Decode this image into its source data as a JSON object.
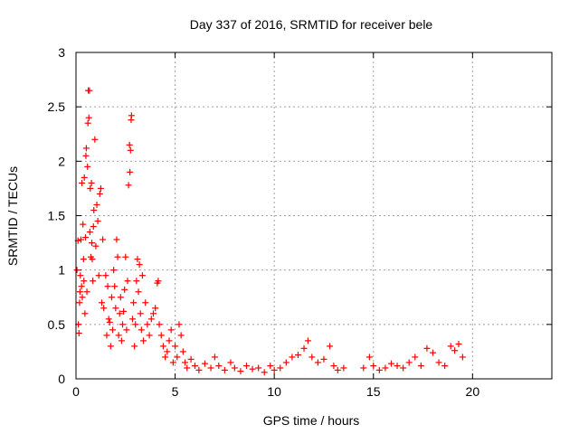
{
  "chart_data": {
    "type": "scatter",
    "title": "Day 337 of 2016, SRMTID for receiver bele",
    "xlabel": "GPS time / hours",
    "ylabel": "SRMTID / TECUs",
    "xlim": [
      0,
      24
    ],
    "ylim": [
      0,
      3
    ],
    "xticks": [
      0,
      5,
      10,
      15,
      20
    ],
    "yticks": [
      0,
      0.5,
      1,
      1.5,
      2,
      2.5,
      3
    ],
    "grid": true,
    "marker": "+",
    "series": [
      {
        "name": "SRMTID",
        "color": "#ff0000",
        "points": [
          [
            0.05,
            1.0
          ],
          [
            0.1,
            1.27
          ],
          [
            0.12,
            0.5
          ],
          [
            0.15,
            0.42
          ],
          [
            0.18,
            0.7
          ],
          [
            0.2,
            0.8
          ],
          [
            0.22,
            0.95
          ],
          [
            0.25,
            1.28
          ],
          [
            0.28,
            0.85
          ],
          [
            0.3,
            1.8
          ],
          [
            0.32,
            0.75
          ],
          [
            0.35,
            1.42
          ],
          [
            0.38,
            1.1
          ],
          [
            0.4,
            0.9
          ],
          [
            0.42,
            1.85
          ],
          [
            0.45,
            0.6
          ],
          [
            0.48,
            1.3
          ],
          [
            0.5,
            2.05
          ],
          [
            0.52,
            2.12
          ],
          [
            0.55,
            0.8
          ],
          [
            0.58,
            1.95
          ],
          [
            0.6,
            2.35
          ],
          [
            0.62,
            2.65
          ],
          [
            0.65,
            2.4
          ],
          [
            0.68,
            2.65
          ],
          [
            0.7,
            1.35
          ],
          [
            0.72,
            1.75
          ],
          [
            0.75,
            1.12
          ],
          [
            0.78,
            1.8
          ],
          [
            0.8,
            1.25
          ],
          [
            0.82,
            1.1
          ],
          [
            0.85,
            0.9
          ],
          [
            0.88,
            1.4
          ],
          [
            0.9,
            1.55
          ],
          [
            0.95,
            2.2
          ],
          [
            1.0,
            1.22
          ],
          [
            1.05,
            1.6
          ],
          [
            1.1,
            1.45
          ],
          [
            1.15,
            0.95
          ],
          [
            1.2,
            1.7
          ],
          [
            1.25,
            1.75
          ],
          [
            1.3,
            0.7
          ],
          [
            1.35,
            1.28
          ],
          [
            1.4,
            0.65
          ],
          [
            1.5,
            0.95
          ],
          [
            1.55,
            0.4
          ],
          [
            1.6,
            0.85
          ],
          [
            1.65,
            0.55
          ],
          [
            1.7,
            0.52
          ],
          [
            1.75,
            0.3
          ],
          [
            1.8,
            0.75
          ],
          [
            1.85,
            0.45
          ],
          [
            1.9,
            1.0
          ],
          [
            1.95,
            0.85
          ],
          [
            2.0,
            0.65
          ],
          [
            2.05,
            1.28
          ],
          [
            2.1,
            1.12
          ],
          [
            2.15,
            0.4
          ],
          [
            2.2,
            0.6
          ],
          [
            2.25,
            0.75
          ],
          [
            2.3,
            0.35
          ],
          [
            2.35,
            0.5
          ],
          [
            2.4,
            0.62
          ],
          [
            2.45,
            0.82
          ],
          [
            2.5,
            1.12
          ],
          [
            2.55,
            0.45
          ],
          [
            2.6,
            0.9
          ],
          [
            2.65,
            1.78
          ],
          [
            2.7,
            2.15
          ],
          [
            2.72,
            1.9
          ],
          [
            2.75,
            2.1
          ],
          [
            2.78,
            2.38
          ],
          [
            2.8,
            2.42
          ],
          [
            2.85,
            0.55
          ],
          [
            2.9,
            0.7
          ],
          [
            2.95,
            0.3
          ],
          [
            3.0,
            0.5
          ],
          [
            3.05,
            0.9
          ],
          [
            3.1,
            1.1
          ],
          [
            3.15,
            0.8
          ],
          [
            3.2,
            1.05
          ],
          [
            3.25,
            0.6
          ],
          [
            3.3,
            0.45
          ],
          [
            3.35,
            0.95
          ],
          [
            3.4,
            0.35
          ],
          [
            3.5,
            0.7
          ],
          [
            3.6,
            0.5
          ],
          [
            3.7,
            0.4
          ],
          [
            3.8,
            0.55
          ],
          [
            3.9,
            0.6
          ],
          [
            4.0,
            0.65
          ],
          [
            4.1,
            0.88
          ],
          [
            4.15,
            0.9
          ],
          [
            4.2,
            0.5
          ],
          [
            4.3,
            0.4
          ],
          [
            4.4,
            0.3
          ],
          [
            4.5,
            0.2
          ],
          [
            4.6,
            0.25
          ],
          [
            4.7,
            0.35
          ],
          [
            4.8,
            0.45
          ],
          [
            4.9,
            0.15
          ],
          [
            5.0,
            0.3
          ],
          [
            5.1,
            0.2
          ],
          [
            5.2,
            0.5
          ],
          [
            5.3,
            0.4
          ],
          [
            5.4,
            0.25
          ],
          [
            5.5,
            0.15
          ],
          [
            5.6,
            0.1
          ],
          [
            5.8,
            0.18
          ],
          [
            6.0,
            0.12
          ],
          [
            6.2,
            0.08
          ],
          [
            6.5,
            0.14
          ],
          [
            6.8,
            0.1
          ],
          [
            7.0,
            0.2
          ],
          [
            7.2,
            0.12
          ],
          [
            7.5,
            0.08
          ],
          [
            7.8,
            0.15
          ],
          [
            8.0,
            0.1
          ],
          [
            8.3,
            0.07
          ],
          [
            8.6,
            0.12
          ],
          [
            8.9,
            0.09
          ],
          [
            9.2,
            0.1
          ],
          [
            9.5,
            0.06
          ],
          [
            9.8,
            0.12
          ],
          [
            10.0,
            0.08
          ],
          [
            10.3,
            0.1
          ],
          [
            10.6,
            0.15
          ],
          [
            10.9,
            0.2
          ],
          [
            11.2,
            0.22
          ],
          [
            11.5,
            0.28
          ],
          [
            11.7,
            0.35
          ],
          [
            11.9,
            0.2
          ],
          [
            12.2,
            0.15
          ],
          [
            12.5,
            0.18
          ],
          [
            12.8,
            0.3
          ],
          [
            13.0,
            0.12
          ],
          [
            13.2,
            0.08
          ],
          [
            13.5,
            0.1
          ],
          [
            14.5,
            0.1
          ],
          [
            14.8,
            0.2
          ],
          [
            15.0,
            0.12
          ],
          [
            15.3,
            0.08
          ],
          [
            15.6,
            0.1
          ],
          [
            15.9,
            0.14
          ],
          [
            16.2,
            0.12
          ],
          [
            16.5,
            0.1
          ],
          [
            16.8,
            0.15
          ],
          [
            17.1,
            0.2
          ],
          [
            17.4,
            0.12
          ],
          [
            17.7,
            0.28
          ],
          [
            18.0,
            0.24
          ],
          [
            18.3,
            0.15
          ],
          [
            18.6,
            0.12
          ],
          [
            18.9,
            0.3
          ],
          [
            19.1,
            0.26
          ],
          [
            19.3,
            0.32
          ],
          [
            19.5,
            0.2
          ]
        ]
      }
    ]
  }
}
